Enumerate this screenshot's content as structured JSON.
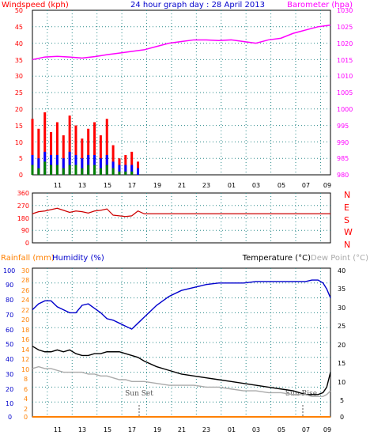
{
  "chart_data": [
    {
      "type": "line",
      "title": "24 hour graph day : 28 April 2013",
      "ylabel": "Windspeed (kph)",
      "y2label": "Barometer (hpa)",
      "ylim": [
        0,
        50
      ],
      "y2lim": [
        980,
        1030
      ],
      "grid": true,
      "yticks": [
        "0",
        "5",
        "10",
        "15",
        "20",
        "25",
        "30",
        "35",
        "40",
        "45",
        "50"
      ],
      "y2ticks": [
        "980",
        "985",
        "990",
        "995",
        "1000",
        "1005",
        "1010",
        "1015",
        "1020",
        "1025",
        "1030"
      ],
      "xticks": [
        "11",
        "13",
        "15",
        "17",
        "19",
        "21",
        "23",
        "01",
        "03",
        "05",
        "07",
        "09"
      ],
      "colors": {
        "gust": "#ff0000",
        "average": "#0000ff",
        "minimum": "#008000",
        "barometer": "#ff00ff"
      },
      "series": [
        {
          "key": "barometer",
          "axis": "y2",
          "x": [
            0,
            1,
            2,
            3,
            4,
            5,
            6,
            7,
            8,
            9,
            10,
            11,
            12,
            13,
            14,
            15,
            16,
            17,
            18,
            19,
            20,
            21,
            22,
            23,
            24
          ],
          "values": [
            1015,
            1015.8,
            1016,
            1015.8,
            1015.5,
            1015.9,
            1016.5,
            1017,
            1017.5,
            1018,
            1019,
            1020,
            1020.5,
            1021,
            1021,
            1020.8,
            1021,
            1020.5,
            1020,
            1021,
            1021.5,
            1023,
            1024,
            1025,
            1025.5
          ]
        },
        {
          "key": "gust",
          "axis": "y",
          "x": [
            0,
            0.5,
            1,
            1.5,
            2,
            2.5,
            3,
            3.5,
            4,
            4.5,
            5,
            5.5,
            6,
            6.5,
            7,
            7.5,
            8,
            8.5,
            9,
            24
          ],
          "values": [
            17,
            14,
            19,
            13,
            16,
            12,
            18,
            15,
            11,
            14,
            16,
            12,
            17,
            9,
            5,
            6,
            7,
            4,
            0,
            0
          ]
        },
        {
          "key": "average",
          "axis": "y",
          "x": [
            0,
            0.5,
            1,
            1.5,
            2,
            2.5,
            3,
            3.5,
            4,
            4.5,
            5,
            5.5,
            6,
            6.5,
            7,
            7.5,
            8,
            8.5,
            9,
            24
          ],
          "values": [
            6,
            5,
            7,
            6,
            6,
            5,
            7,
            6,
            5,
            6,
            6,
            5,
            6,
            4,
            3,
            3,
            3,
            2,
            0,
            0
          ]
        },
        {
          "key": "minimum",
          "axis": "y",
          "x": [
            0,
            0.5,
            1,
            1.5,
            2,
            2.5,
            3,
            3.5,
            4,
            4.5,
            5,
            5.5,
            6,
            6.5,
            7,
            7.5,
            8,
            8.5,
            9,
            24
          ],
          "values": [
            3,
            2,
            4,
            3,
            3,
            2,
            3,
            3,
            2,
            3,
            3,
            2,
            3,
            2,
            1,
            1,
            1,
            0,
            0,
            0
          ]
        }
      ]
    },
    {
      "type": "line",
      "ylim": [
        0,
        360
      ],
      "yticks": [
        "0",
        "90",
        "180",
        "270",
        "360"
      ],
      "y2ticks": [
        "N",
        "W",
        "S",
        "E",
        "N"
      ],
      "xticks": [
        "11",
        "13",
        "15",
        "17",
        "19",
        "21",
        "23",
        "01",
        "03",
        "05",
        "07",
        "09"
      ],
      "grid": true,
      "colors": {
        "direction": "#cc0000"
      },
      "series": [
        {
          "key": "direction",
          "x": [
            0,
            0.5,
            1,
            1.5,
            2,
            2.5,
            3,
            3.5,
            4,
            4.5,
            5,
            5.5,
            6,
            6.5,
            7,
            7.5,
            8,
            8.5,
            9,
            24
          ],
          "values": [
            210,
            225,
            230,
            240,
            250,
            235,
            220,
            230,
            225,
            215,
            230,
            235,
            245,
            200,
            195,
            190,
            195,
            230,
            210,
            210
          ]
        }
      ]
    },
    {
      "type": "line",
      "ylabel": "Rainfall (mm)",
      "y1label": "Humidity (%)",
      "y2label": "Temperature (°C)",
      "y3label": "Dew Point (°C)",
      "rain_ylim": [
        0,
        30
      ],
      "humidity_ylim": [
        0,
        100
      ],
      "temp_ylim": [
        0,
        40
      ],
      "rain_ticks": [
        "0",
        "2",
        "4",
        "6",
        "8",
        "10",
        "12",
        "14",
        "16",
        "18",
        "20",
        "22",
        "24",
        "26",
        "28",
        "30"
      ],
      "humidity_ticks": [
        "0",
        "10",
        "20",
        "30",
        "40",
        "50",
        "60",
        "70",
        "80",
        "90",
        "100"
      ],
      "temp_ticks": [
        "0",
        "5",
        "10",
        "15",
        "20",
        "25",
        "30",
        "35",
        "40"
      ],
      "xticks": [
        "11",
        "13",
        "15",
        "17",
        "19",
        "21",
        "23",
        "01",
        "03",
        "05",
        "07",
        "09"
      ],
      "grid": true,
      "colors": {
        "humidity": "#0000cc",
        "temperature": "#000000",
        "dewpoint": "#aaaaaa",
        "rainfall": "#ff8000"
      },
      "annotations": [
        {
          "text": "Sun Set",
          "x": 7.5
        },
        {
          "text": "Sun Rise",
          "x": 21.8
        }
      ],
      "series": [
        {
          "key": "humidity",
          "axis": "humidity",
          "x": [
            0,
            0.5,
            1,
            1.5,
            2,
            2.5,
            3,
            3.5,
            4,
            4.5,
            5,
            5.5,
            6,
            6.5,
            7,
            7.5,
            8,
            8.5,
            9,
            10,
            11,
            12,
            13,
            14,
            15,
            16,
            17,
            18,
            19,
            20,
            21,
            22,
            22.5,
            23,
            23.4,
            23.7,
            24
          ],
          "values": [
            72,
            76,
            78,
            78,
            74,
            72,
            70,
            70,
            75,
            76,
            73,
            70,
            66,
            65,
            63,
            61,
            59,
            63,
            67,
            75,
            81,
            85,
            87,
            89,
            90,
            90,
            90,
            91,
            91,
            91,
            91,
            91,
            92,
            92,
            90,
            86,
            80
          ]
        },
        {
          "key": "temperature",
          "axis": "temp",
          "x": [
            0,
            0.5,
            1,
            1.5,
            2,
            2.5,
            3,
            3.5,
            4,
            4.5,
            5,
            5.5,
            6,
            6.5,
            7,
            7.5,
            8,
            8.5,
            9,
            10,
            11,
            12,
            13,
            14,
            15,
            16,
            17,
            18,
            19,
            20,
            21,
            21.5,
            22,
            22.5,
            23,
            23.4,
            23.7,
            24
          ],
          "values": [
            19,
            18,
            17.5,
            17.5,
            18,
            17.5,
            18,
            17,
            16.5,
            16.5,
            17,
            17,
            17.5,
            17.5,
            17.5,
            17,
            16.5,
            16,
            15,
            13.5,
            12.5,
            11.5,
            11,
            10.5,
            10,
            9.5,
            9,
            8.5,
            8,
            7.5,
            7,
            6.5,
            6,
            6,
            6,
            6.5,
            8,
            12
          ]
        },
        {
          "key": "dewpoint",
          "axis": "temp",
          "x": [
            0,
            0.5,
            1,
            1.5,
            2,
            2.5,
            3,
            3.5,
            4,
            4.5,
            5,
            5.5,
            6,
            6.5,
            7,
            7.5,
            8,
            8.5,
            9,
            10,
            11,
            12,
            13,
            14,
            15,
            16,
            17,
            18,
            19,
            20,
            21,
            22,
            22.5,
            23,
            23.4,
            23.7,
            24
          ],
          "values": [
            13,
            13.5,
            13,
            13,
            12.5,
            12,
            12,
            12,
            12,
            11.5,
            11.5,
            11,
            11,
            10.5,
            10,
            10,
            9.5,
            9.5,
            9.5,
            9,
            8.5,
            8.5,
            8.5,
            8,
            8,
            7.5,
            7,
            7,
            6.5,
            6.5,
            6,
            6,
            5.5,
            5.5,
            5.5,
            6,
            7
          ]
        },
        {
          "key": "rainfall",
          "axis": "rain",
          "x": [
            0,
            24
          ],
          "values": [
            0,
            0
          ]
        }
      ]
    }
  ]
}
